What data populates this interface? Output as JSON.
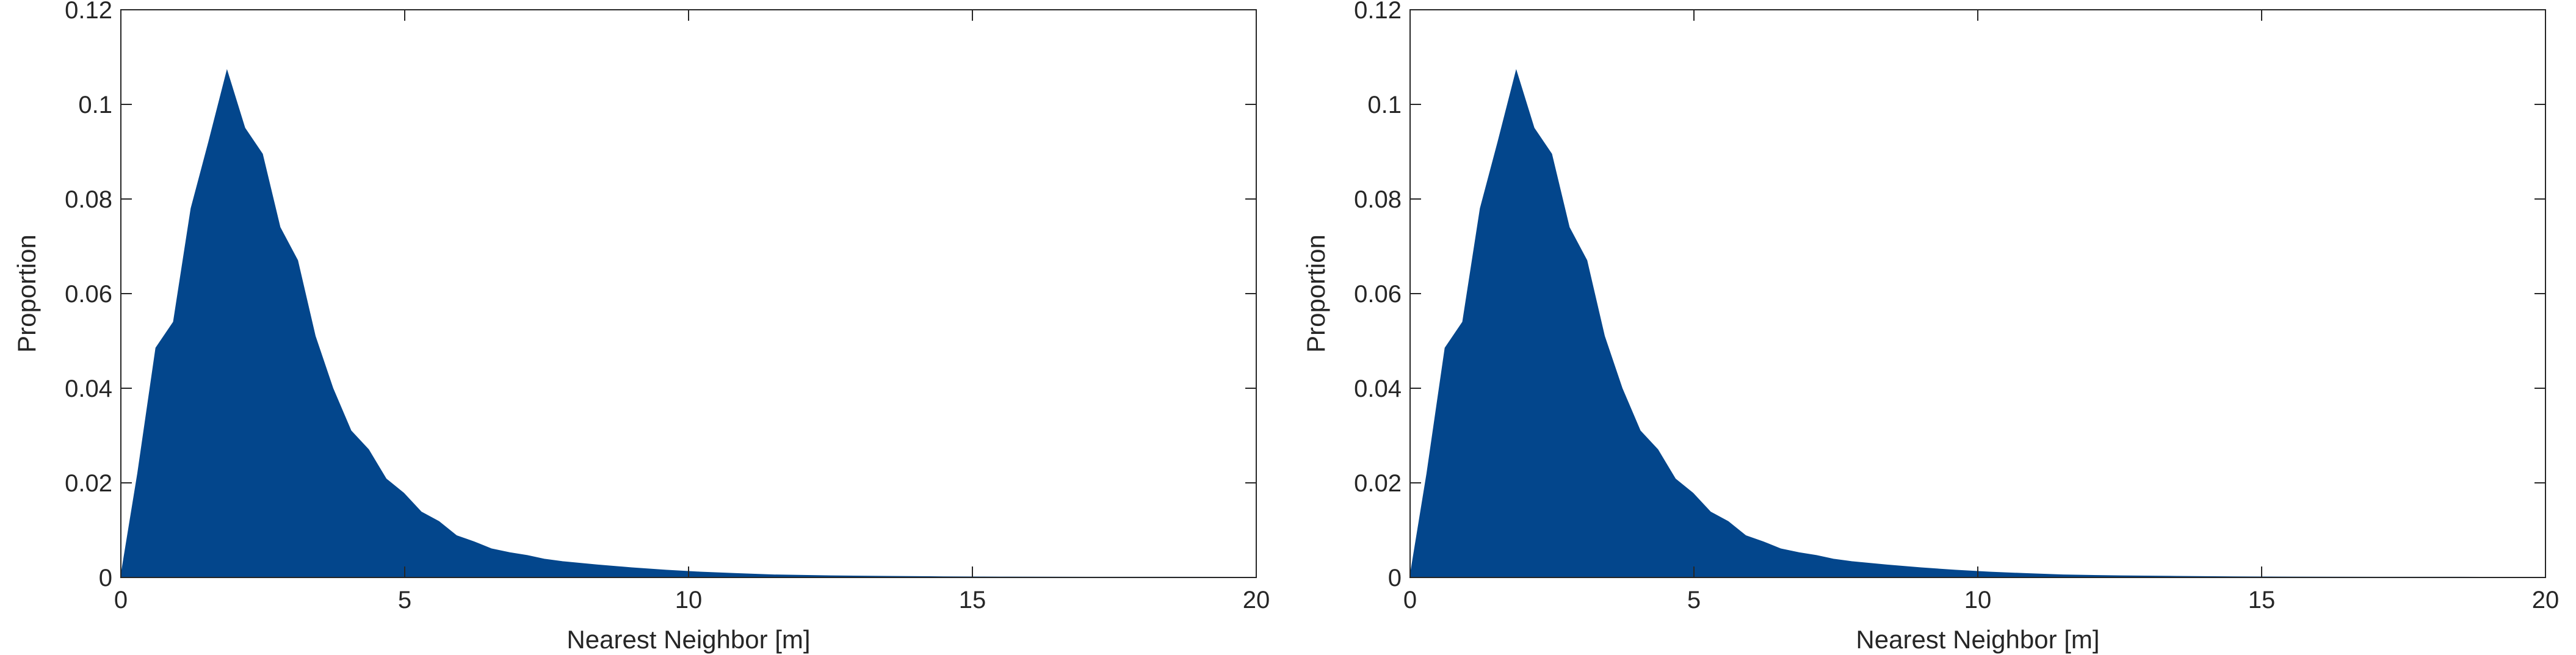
{
  "chart_data": [
    {
      "type": "area",
      "title": "",
      "xlabel": "Nearest Neighbor [m]",
      "ylabel": "Proportion",
      "xlim": [
        0,
        20
      ],
      "ylim": [
        0,
        0.12
      ],
      "xticks": [
        "0",
        "5",
        "10",
        "15",
        "20"
      ],
      "yticks": [
        "0",
        "0.02",
        "0.04",
        "0.06",
        "0.08",
        "0.1",
        "0.12"
      ],
      "grid": false,
      "fill_color": "#03468c",
      "x": [
        0,
        0.3,
        0.62,
        0.93,
        1.24,
        1.55,
        1.87,
        2.18,
        2.49,
        2.8,
        3.11,
        3.42,
        3.73,
        4.05,
        4.36,
        4.67,
        4.98,
        5.29,
        5.6,
        5.91,
        6.22,
        6.53,
        6.85,
        7.16,
        7.47,
        7.78,
        8.4,
        9.0,
        9.6,
        10.2,
        10.8,
        11.5,
        12.5,
        13.5,
        14.5,
        15.5,
        17,
        18.5,
        20
      ],
      "y": [
        0,
        0.022,
        0.0485,
        0.054,
        0.078,
        0.092,
        0.107,
        0.095,
        0.0895,
        0.074,
        0.067,
        0.051,
        0.04,
        0.031,
        0.027,
        0.0208,
        0.0178,
        0.0138,
        0.0118,
        0.0088,
        0.0075,
        0.006,
        0.0052,
        0.0046,
        0.0038,
        0.0033,
        0.0026,
        0.002,
        0.0015,
        0.0011,
        0.0008,
        0.0005,
        0.0003,
        0.0002,
        0.0001,
        5e-05,
        2e-05,
        1e-05,
        0
      ]
    },
    {
      "type": "area",
      "title": "",
      "xlabel": "Nearest Neighbor [m]",
      "ylabel": "Proportion",
      "xlim": [
        0,
        20
      ],
      "ylim": [
        0,
        0.12
      ],
      "xticks": [
        "0",
        "5",
        "10",
        "15",
        "20"
      ],
      "yticks": [
        "0",
        "0.02",
        "0.04",
        "0.06",
        "0.08",
        "0.1",
        "0.12"
      ],
      "grid": false,
      "fill_color": "#03468c",
      "x": [
        0,
        0.3,
        0.62,
        0.93,
        1.24,
        1.55,
        1.87,
        2.18,
        2.49,
        2.8,
        3.11,
        3.42,
        3.73,
        4.05,
        4.36,
        4.67,
        4.98,
        5.29,
        5.6,
        5.91,
        6.22,
        6.53,
        6.85,
        7.16,
        7.47,
        7.78,
        8.4,
        9.0,
        9.6,
        10.2,
        10.8,
        11.5,
        12.5,
        13.5,
        14.5,
        15.5,
        17,
        18.5,
        20
      ],
      "y": [
        0,
        0.022,
        0.0485,
        0.054,
        0.078,
        0.092,
        0.107,
        0.095,
        0.0895,
        0.074,
        0.067,
        0.051,
        0.04,
        0.031,
        0.027,
        0.0208,
        0.0178,
        0.0138,
        0.0118,
        0.0088,
        0.0075,
        0.006,
        0.0052,
        0.0046,
        0.0038,
        0.0033,
        0.0026,
        0.002,
        0.0015,
        0.0011,
        0.0008,
        0.0005,
        0.0003,
        0.0002,
        0.0001,
        5e-05,
        2e-05,
        1e-05,
        0
      ]
    }
  ]
}
